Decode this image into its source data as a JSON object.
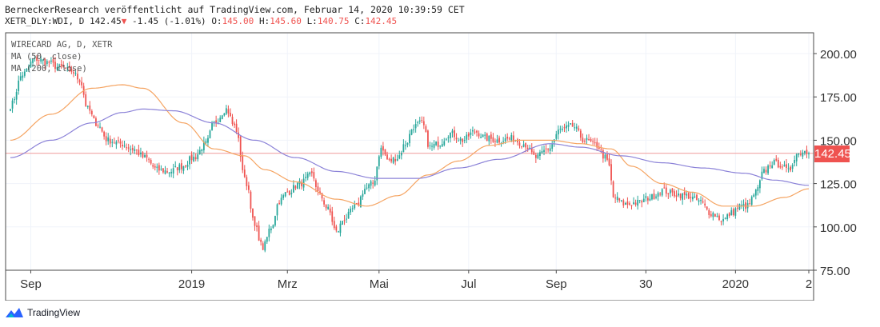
{
  "header": {
    "publisher_line": "BerneckerResearch veröffentlicht auf TradingView.com, Februar 14, 2020 10:39:59 CET",
    "symbol": "XETR_DLY:WDI, D",
    "last": "142.45",
    "change_arrow": "▼",
    "change": "-1.45 (-1.01%)",
    "open_label": "O:",
    "open": "145.00",
    "high_label": "H:",
    "high": "145.60",
    "low_label": "L:",
    "low": "140.75",
    "close_label": "C:",
    "close": "142.45"
  },
  "legend": {
    "line1": "WIRECARD AG, D, XETR",
    "line2": "MA (50, close)",
    "line3": "MA (200, close)"
  },
  "footer": {
    "brand": "TradingView"
  },
  "chart_data": {
    "type": "candlestick",
    "title": "WIRECARD AG, D, XETR",
    "ylim": [
      75,
      212
    ],
    "yticks": [
      75,
      100,
      125,
      150,
      175,
      200
    ],
    "ytick_labels": [
      "75.00",
      "100.00",
      "125.00",
      "150.00",
      "175.00",
      "200.00"
    ],
    "x_labels": [
      {
        "label": "Sep",
        "index": 10
      },
      {
        "label": "2019",
        "index": 89
      },
      {
        "label": "Mrz",
        "index": 136
      },
      {
        "label": "Mai",
        "index": 181
      },
      {
        "label": "Jul",
        "index": 225
      },
      {
        "label": "Sep",
        "index": 268
      },
      {
        "label": "30",
        "index": 312
      },
      {
        "label": "2020",
        "index": 356
      },
      {
        "label": "2",
        "index": 392
      }
    ],
    "n_days": 393,
    "last_price": 142.45,
    "last_price_label": "142.45",
    "anchors": [
      [
        0,
        170
      ],
      [
        6,
        188
      ],
      [
        12,
        197
      ],
      [
        18,
        195
      ],
      [
        24,
        192
      ],
      [
        30,
        190
      ],
      [
        34,
        185
      ],
      [
        38,
        168
      ],
      [
        42,
        160
      ],
      [
        48,
        150
      ],
      [
        54,
        148
      ],
      [
        60,
        145
      ],
      [
        66,
        140
      ],
      [
        72,
        133
      ],
      [
        78,
        132
      ],
      [
        84,
        135
      ],
      [
        90,
        140
      ],
      [
        96,
        148
      ],
      [
        100,
        160
      ],
      [
        106,
        168
      ],
      [
        110,
        158
      ],
      [
        116,
        125
      ],
      [
        120,
        100
      ],
      [
        124,
        88
      ],
      [
        128,
        100
      ],
      [
        132,
        115
      ],
      [
        136,
        120
      ],
      [
        142,
        125
      ],
      [
        148,
        130
      ],
      [
        152,
        118
      ],
      [
        156,
        110
      ],
      [
        160,
        97
      ],
      [
        164,
        105
      ],
      [
        170,
        112
      ],
      [
        174,
        122
      ],
      [
        178,
        125
      ],
      [
        182,
        145
      ],
      [
        186,
        138
      ],
      [
        190,
        140
      ],
      [
        194,
        148
      ],
      [
        198,
        158
      ],
      [
        202,
        160
      ],
      [
        206,
        146
      ],
      [
        210,
        148
      ],
      [
        216,
        154
      ],
      [
        222,
        150
      ],
      [
        228,
        155
      ],
      [
        234,
        151
      ],
      [
        240,
        150
      ],
      [
        246,
        151
      ],
      [
        252,
        148
      ],
      [
        258,
        140
      ],
      [
        264,
        145
      ],
      [
        270,
        156
      ],
      [
        276,
        158
      ],
      [
        282,
        150
      ],
      [
        288,
        147
      ],
      [
        292,
        140
      ],
      [
        294,
        135
      ],
      [
        296,
        117
      ],
      [
        302,
        113
      ],
      [
        308,
        114
      ],
      [
        314,
        117
      ],
      [
        320,
        121
      ],
      [
        326,
        119
      ],
      [
        332,
        118
      ],
      [
        338,
        115
      ],
      [
        344,
        108
      ],
      [
        350,
        104
      ],
      [
        354,
        108
      ],
      [
        358,
        112
      ],
      [
        362,
        112
      ],
      [
        366,
        120
      ],
      [
        370,
        132
      ],
      [
        374,
        137
      ],
      [
        378,
        136
      ],
      [
        382,
        132
      ],
      [
        386,
        142
      ],
      [
        390,
        143.9
      ],
      [
        392,
        142.45
      ]
    ],
    "ma50": [
      [
        0,
        150
      ],
      [
        20,
        165
      ],
      [
        40,
        180
      ],
      [
        55,
        182
      ],
      [
        65,
        180
      ],
      [
        85,
        160
      ],
      [
        100,
        145
      ],
      [
        115,
        141
      ],
      [
        125,
        133
      ],
      [
        140,
        126
      ],
      [
        160,
        116
      ],
      [
        175,
        112
      ],
      [
        190,
        118
      ],
      [
        205,
        130
      ],
      [
        220,
        138
      ],
      [
        235,
        147
      ],
      [
        250,
        150
      ],
      [
        265,
        150
      ],
      [
        280,
        148
      ],
      [
        295,
        145
      ],
      [
        305,
        135
      ],
      [
        320,
        125
      ],
      [
        335,
        120
      ],
      [
        350,
        112
      ],
      [
        365,
        112
      ],
      [
        380,
        117
      ],
      [
        392,
        122
      ]
    ],
    "ma200": [
      [
        0,
        140
      ],
      [
        20,
        150
      ],
      [
        40,
        160
      ],
      [
        55,
        166
      ],
      [
        65,
        168
      ],
      [
        80,
        167
      ],
      [
        100,
        160
      ],
      [
        120,
        150
      ],
      [
        140,
        140
      ],
      [
        160,
        132
      ],
      [
        180,
        128
      ],
      [
        200,
        128
      ],
      [
        220,
        134
      ],
      [
        240,
        139
      ],
      [
        265,
        148
      ],
      [
        280,
        146
      ],
      [
        300,
        141
      ],
      [
        320,
        137
      ],
      [
        340,
        134
      ],
      [
        360,
        131
      ],
      [
        375,
        127
      ],
      [
        392,
        124
      ]
    ],
    "colors": {
      "up": "#26a69a",
      "down": "#ef5350",
      "ma50": "#f5a462",
      "ma200": "#8c83d8",
      "priceline": "#ef9a9a"
    }
  }
}
